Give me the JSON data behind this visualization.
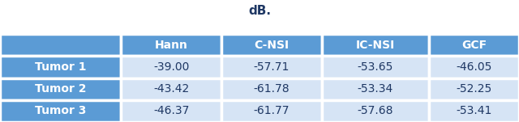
{
  "title": "dB.",
  "col_headers": [
    "",
    "Hann",
    "C-NSI",
    "IC-NSI",
    "GCF"
  ],
  "row_labels": [
    "Tumor 1",
    "Tumor 2",
    "Tumor 3"
  ],
  "table_data": [
    [
      "-39.00",
      "-57.71",
      "-53.65",
      "-46.05"
    ],
    [
      "-43.42",
      "-61.78",
      "-53.34",
      "-52.25"
    ],
    [
      "-46.37",
      "-61.77",
      "-57.68",
      "-53.41"
    ]
  ],
  "header_bg": "#5B9BD5",
  "header_text_color": "#FFFFFF",
  "row_label_bg": "#5B9BD5",
  "row_label_text_color": "#FFFFFF",
  "data_bg": "#D6E4F5",
  "data_text_color": "#1F3864",
  "title_color": "#1F3864",
  "border_color": "#FFFFFF",
  "font_size": 10,
  "title_font_size": 11
}
